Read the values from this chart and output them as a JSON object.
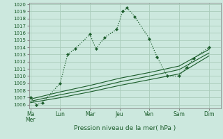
{
  "title": "Pression niveau de la mer( hPa )",
  "bg_color": "#cce8de",
  "grid_color": "#aaccbb",
  "line_color": "#1a5c2a",
  "figsize": [
    3.2,
    2.0
  ],
  "dpi": 100,
  "x_labels": [
    "Ma\nMer",
    "Lun",
    "Mar",
    "Jeu",
    "Ven",
    "Sam",
    "Dim"
  ],
  "x_tick_positions": [
    0,
    2,
    4,
    6,
    8,
    10,
    12
  ],
  "xlim": [
    -0.1,
    12.8
  ],
  "ylim": [
    1005.5,
    1020.2
  ],
  "yticks": [
    1006,
    1007,
    1008,
    1009,
    1010,
    1011,
    1012,
    1013,
    1014,
    1015,
    1016,
    1017,
    1018,
    1019,
    1020
  ],
  "main_line": {
    "x": [
      0.0,
      0.4,
      0.8,
      2.0,
      2.5,
      3.0,
      4.0,
      4.4,
      5.0,
      5.8,
      6.2,
      6.5,
      7.0,
      8.0,
      8.5,
      9.2,
      10.0,
      10.5,
      11.0,
      12.0
    ],
    "y": [
      1007.0,
      1006.0,
      1006.3,
      1009.0,
      1013.0,
      1013.8,
      1015.8,
      1013.8,
      1015.4,
      1016.5,
      1019.0,
      1019.5,
      1018.3,
      1015.2,
      1012.7,
      1010.0,
      1010.0,
      1011.2,
      1012.5,
      1014.0
    ]
  },
  "lower_line1": {
    "x": [
      0.0,
      2.0,
      4.0,
      6.0,
      8.0,
      10.0,
      12.0
    ],
    "y": [
      1006.3,
      1007.0,
      1007.8,
      1008.7,
      1009.5,
      1010.3,
      1012.8
    ]
  },
  "lower_line2": {
    "x": [
      0.0,
      2.0,
      4.0,
      6.0,
      8.0,
      10.0,
      12.0
    ],
    "y": [
      1006.5,
      1007.4,
      1008.2,
      1009.2,
      1010.0,
      1010.9,
      1013.2
    ]
  },
  "lower_line3": {
    "x": [
      0.0,
      2.0,
      4.0,
      6.0,
      8.0,
      10.0,
      12.0
    ],
    "y": [
      1006.8,
      1007.8,
      1008.7,
      1009.7,
      1010.5,
      1011.4,
      1013.7
    ]
  }
}
